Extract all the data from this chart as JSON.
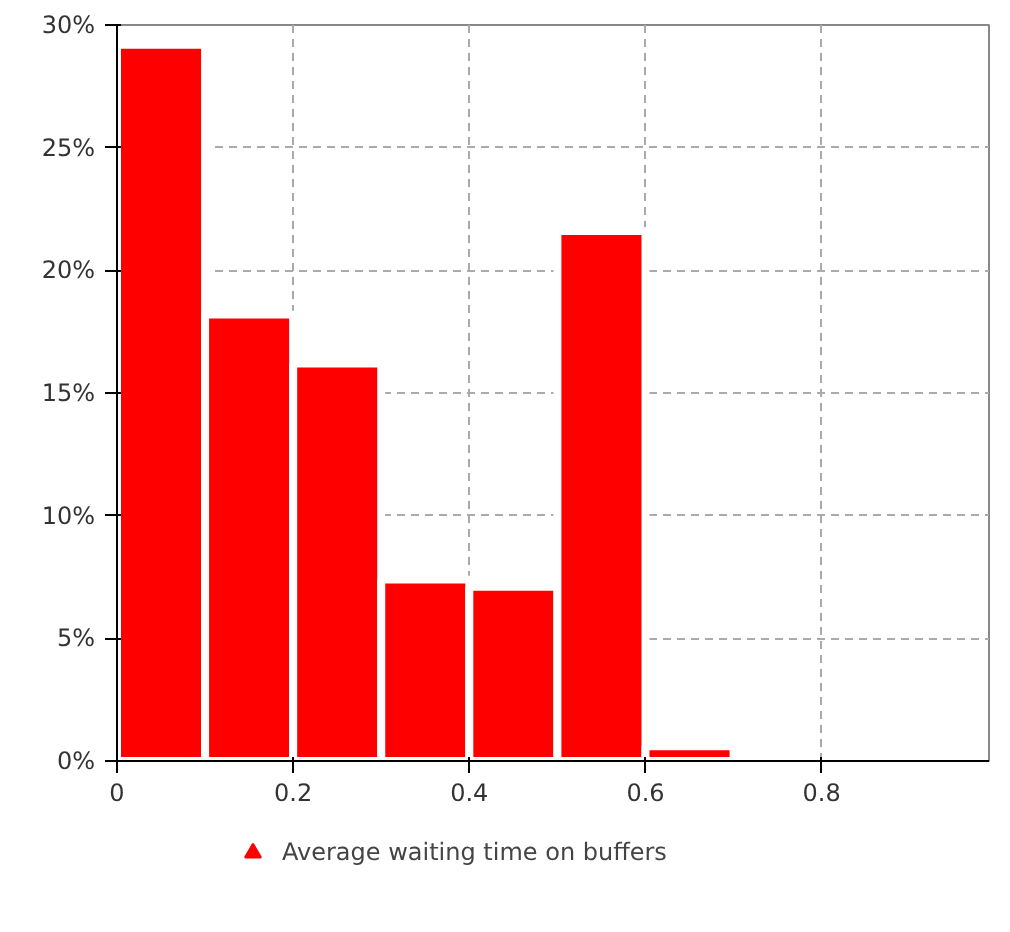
{
  "chart_data": {
    "type": "histogram",
    "bins": [
      0,
      0.1,
      0.2,
      0.3,
      0.4,
      0.5,
      0.6,
      0.7
    ],
    "series": [
      {
        "name": "Average waiting time on buffers",
        "color": "#ff0000",
        "values": [
          29.2,
          18.2,
          16.2,
          7.4,
          7.1,
          21.6,
          0.6
        ]
      }
    ],
    "xlim": [
      0,
      0.99
    ],
    "xticks": [
      0,
      0.2,
      0.4,
      0.6,
      0.8
    ],
    "ylim": [
      0,
      30
    ],
    "yticks": [
      {
        "value": 0,
        "label": "0%"
      },
      {
        "value": 5,
        "label": "5%"
      },
      {
        "value": 10,
        "label": "10%"
      },
      {
        "value": 15,
        "label": "15%"
      },
      {
        "value": 20,
        "label": "20%"
      },
      {
        "value": 25,
        "label": "25%"
      },
      {
        "value": 30,
        "label": "30%"
      }
    ],
    "grid": true,
    "legend": "bottom"
  }
}
